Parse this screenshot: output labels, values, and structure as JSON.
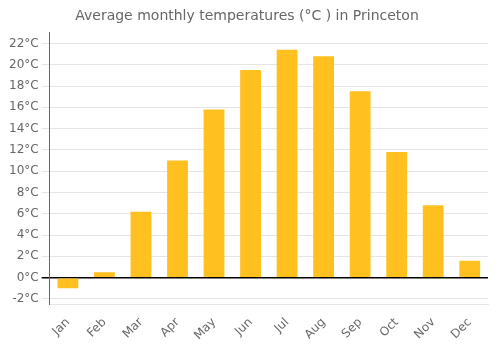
{
  "chart_data": {
    "type": "bar",
    "title": "Average monthly temperatures (°C ) in Princeton",
    "categories": [
      "Jan",
      "Feb",
      "Mar",
      "Apr",
      "May",
      "Jun",
      "Jul",
      "Aug",
      "Sep",
      "Oct",
      "Nov",
      "Dec"
    ],
    "values": [
      -1.0,
      0.5,
      6.2,
      11.0,
      15.8,
      19.5,
      21.4,
      20.8,
      17.5,
      11.8,
      6.8,
      1.6
    ],
    "color": "#FFC020",
    "ylim": [
      -2.5,
      23
    ],
    "yticks": [
      {
        "value": -2,
        "label": "-2°C"
      },
      {
        "value": 0,
        "label": "0°C"
      },
      {
        "value": 2,
        "label": "2°C"
      },
      {
        "value": 4,
        "label": "4°C"
      },
      {
        "value": 6,
        "label": "6°C"
      },
      {
        "value": 8,
        "label": "8°C"
      },
      {
        "value": 10,
        "label": "10°C"
      },
      {
        "value": 12,
        "label": "12°C"
      },
      {
        "value": 14,
        "label": "14°C"
      },
      {
        "value": 16,
        "label": "16°C"
      },
      {
        "value": 18,
        "label": "18°C"
      },
      {
        "value": 20,
        "label": "20°C"
      },
      {
        "value": 22,
        "label": "22°C"
      }
    ],
    "grid": true
  }
}
